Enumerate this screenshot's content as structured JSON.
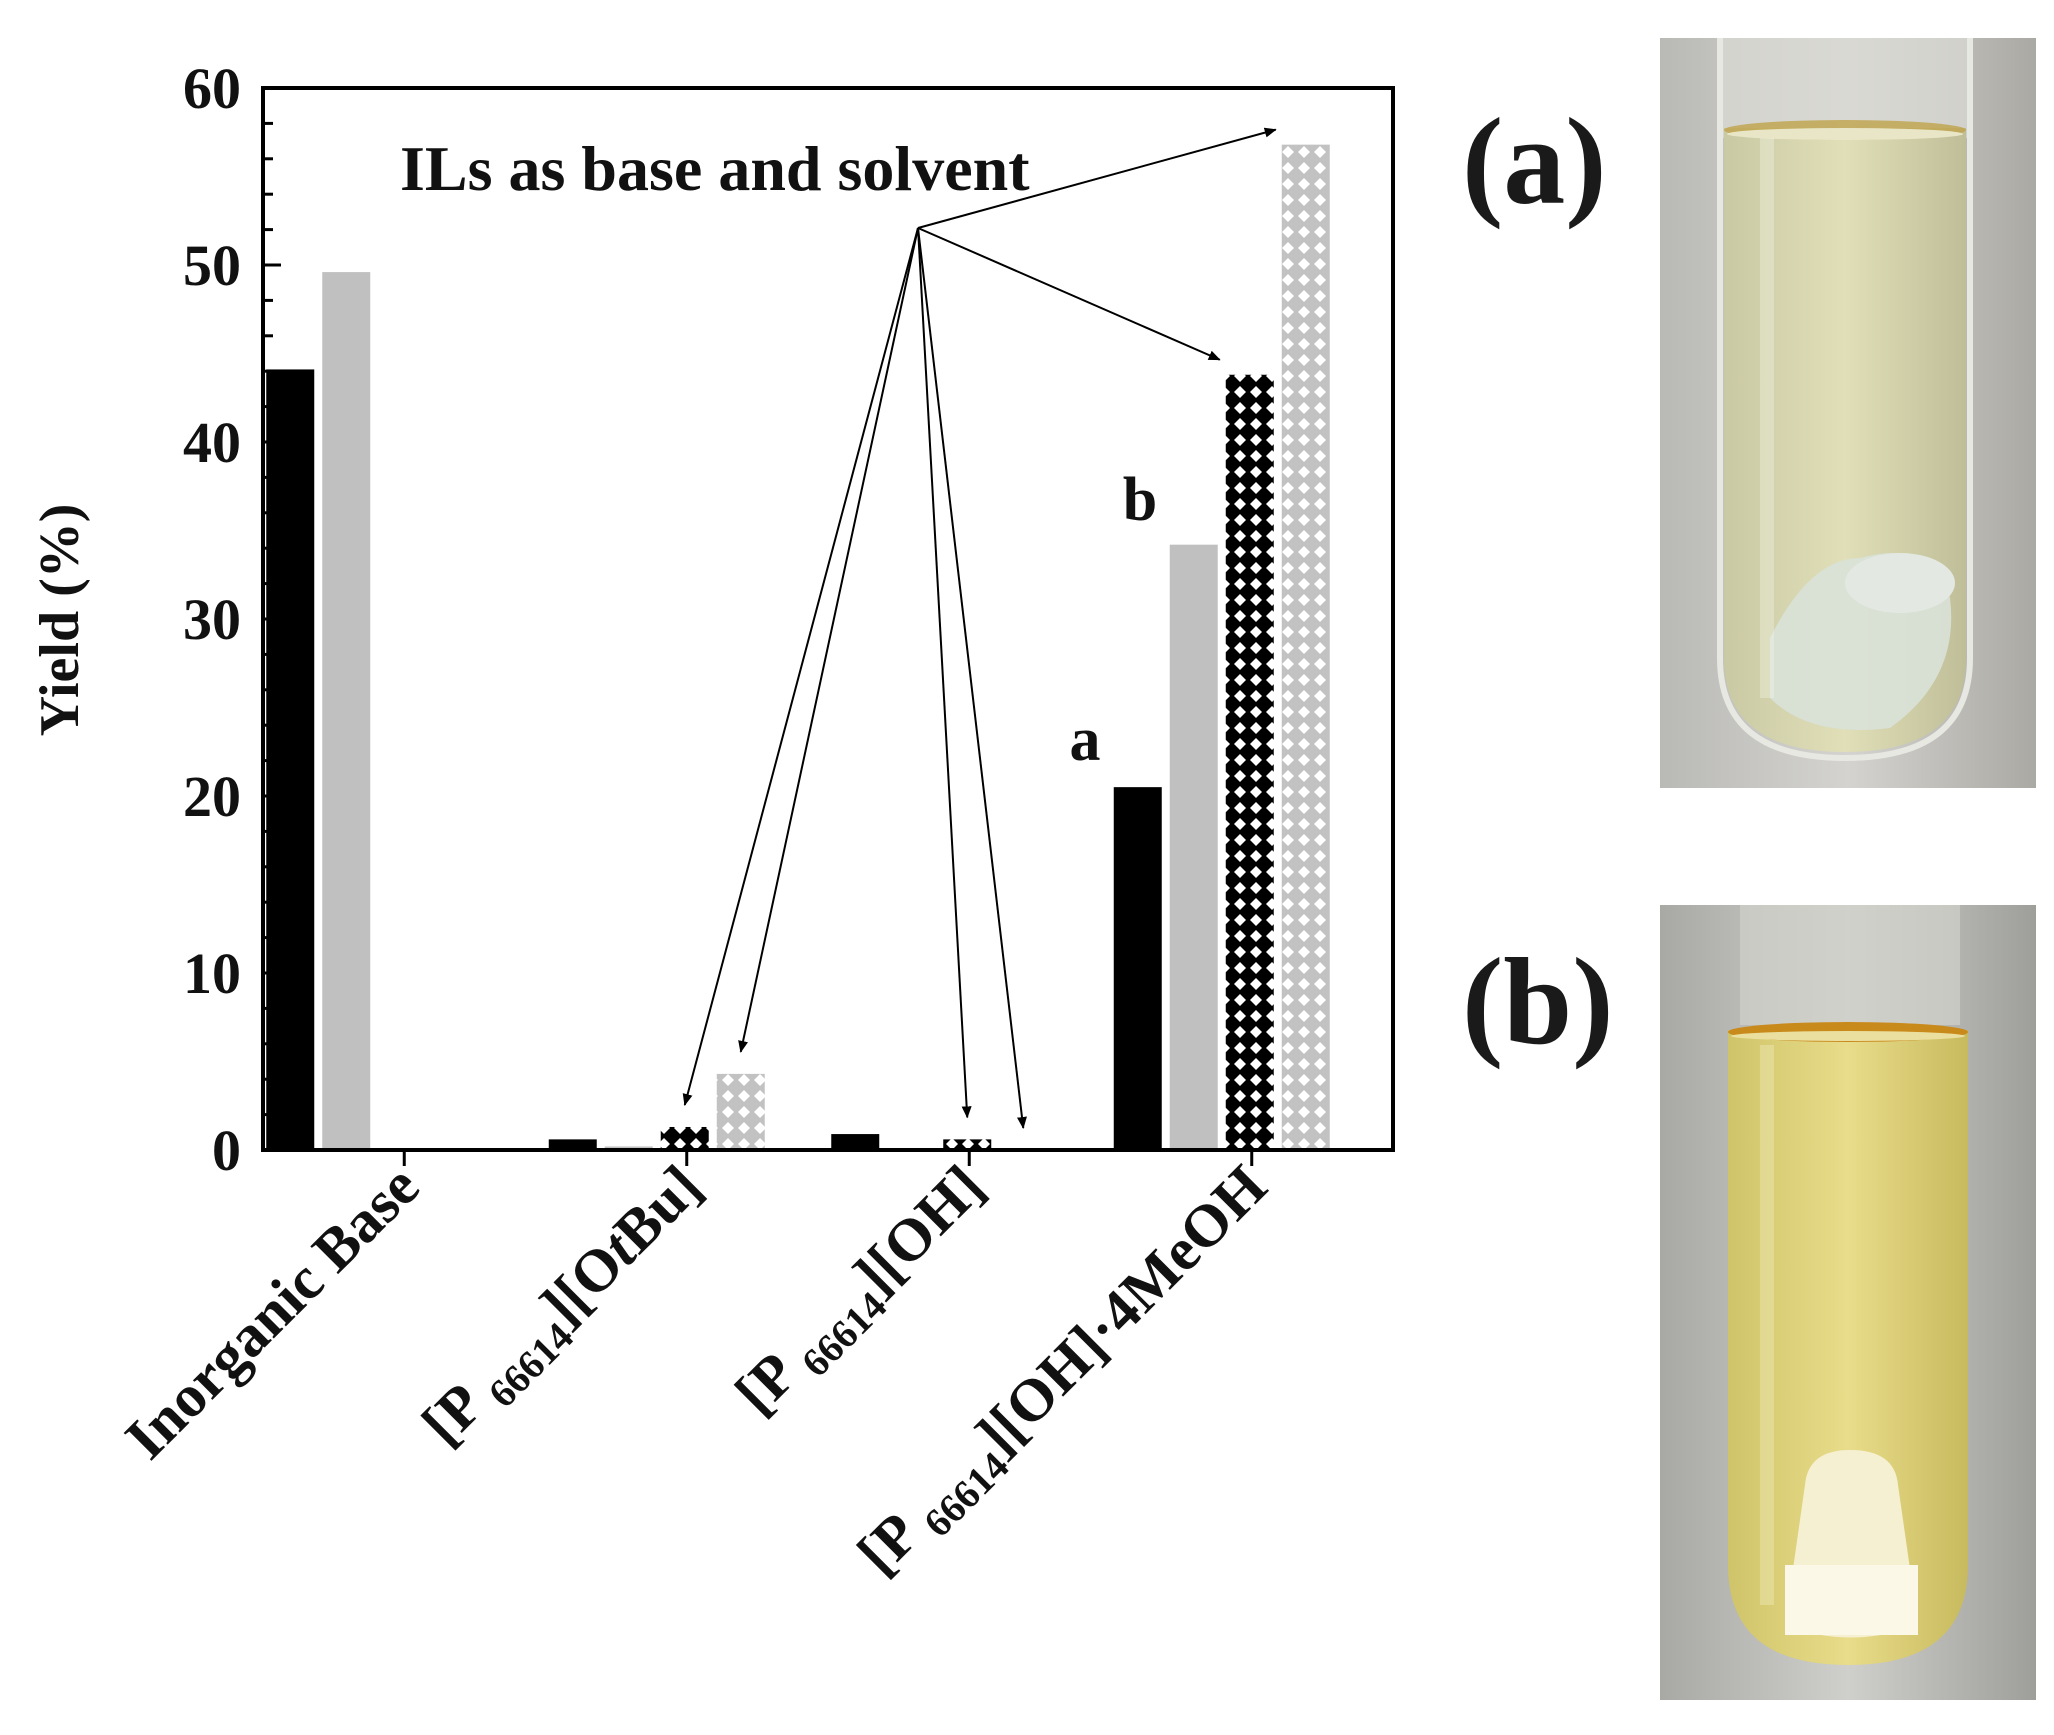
{
  "chart_data": {
    "type": "bar",
    "ylabel": "Yield (%)",
    "ylim": [
      0,
      60
    ],
    "yticks": [
      0,
      10,
      20,
      30,
      40,
      50,
      60
    ],
    "categories": [
      {
        "main": "Inorganic Base",
        "pre": "",
        "sub": "",
        "post": "",
        "italic": "",
        "tail": ""
      },
      {
        "main": "",
        "pre": "[P ",
        "sub": "66614",
        "post": "][O",
        "italic": "t",
        "tail": "Bu]"
      },
      {
        "main": "",
        "pre": "[P ",
        "sub": "66614",
        "post": "][OH]",
        "italic": "",
        "tail": ""
      },
      {
        "main": "",
        "pre": "[P ",
        "sub": "66614",
        "post": "][OH]·4MeOH",
        "italic": "",
        "tail": ""
      }
    ],
    "series_styles": [
      "solid-black",
      "solid-gray",
      "hatch-black",
      "hatch-gray"
    ],
    "series": [
      {
        "values": [
          44.1,
          0.6,
          0.9,
          20.5
        ]
      },
      {
        "values": [
          49.6,
          0.2,
          0.1,
          34.2
        ]
      },
      {
        "values": [
          0,
          1.3,
          0.6,
          43.8
        ]
      },
      {
        "values": [
          0,
          4.3,
          0,
          56.8
        ]
      }
    ],
    "annotations": {
      "title_note": "ILs as base and solvent",
      "label_a": "a",
      "label_b": "b"
    },
    "colors": {
      "black": "#000000",
      "gray": "#c0c0c0"
    }
  },
  "photos": {
    "a": {
      "label": "(a)",
      "description_icon": "test-tube-photo-a"
    },
    "b": {
      "label": "(b)",
      "description_icon": "test-tube-photo-b"
    }
  }
}
